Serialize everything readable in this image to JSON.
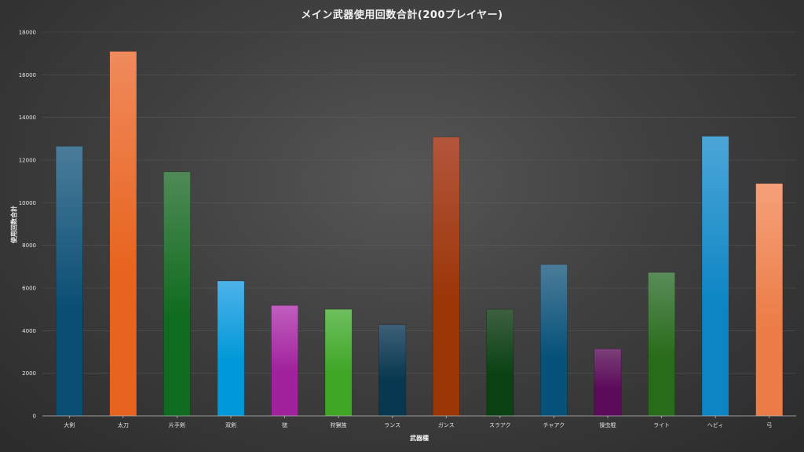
{
  "chart_data": {
    "type": "bar",
    "title": "メイン武器使用回数合計(200プレイヤー)",
    "xlabel": "武器種",
    "ylabel": "使用回数合計",
    "ylim": [
      0,
      18000
    ],
    "yticks": [
      0,
      2000,
      4000,
      6000,
      8000,
      10000,
      12000,
      14000,
      16000,
      18000
    ],
    "grid": true,
    "categories": [
      "大剣",
      "太刀",
      "片手剣",
      "双剣",
      "槌",
      "狩猟笛",
      "ランス",
      "ガンス",
      "スラアク",
      "チャアク",
      "操虫棍",
      "ライト",
      "ヘビィ",
      "弓"
    ],
    "values": [
      12650,
      17100,
      11450,
      6330,
      5180,
      5000,
      4280,
      13080,
      5000,
      7100,
      3150,
      6730,
      13120,
      10900
    ],
    "colors": [
      [
        "#4b7c9a",
        "#0a4e74"
      ],
      [
        "#f08a5d",
        "#e8641e"
      ],
      [
        "#4f8a56",
        "#0f6b1f"
      ],
      [
        "#4db2ea",
        "#0098d8"
      ],
      [
        "#c05ebf",
        "#a0229c"
      ],
      [
        "#6dbf5d",
        "#3fa626"
      ],
      [
        "#3e5f78",
        "#08384f"
      ],
      [
        "#b3563d",
        "#9a3506"
      ],
      [
        "#3d6040",
        "#0b4214"
      ],
      [
        "#4b7c9a",
        "#07527a"
      ],
      [
        "#7a3f78",
        "#5c0a5a"
      ],
      [
        "#5a8c5a",
        "#286b18"
      ],
      [
        "#4ca6d8",
        "#0d85c4"
      ],
      [
        "#f5a07a",
        "#ec7d48"
      ]
    ]
  }
}
